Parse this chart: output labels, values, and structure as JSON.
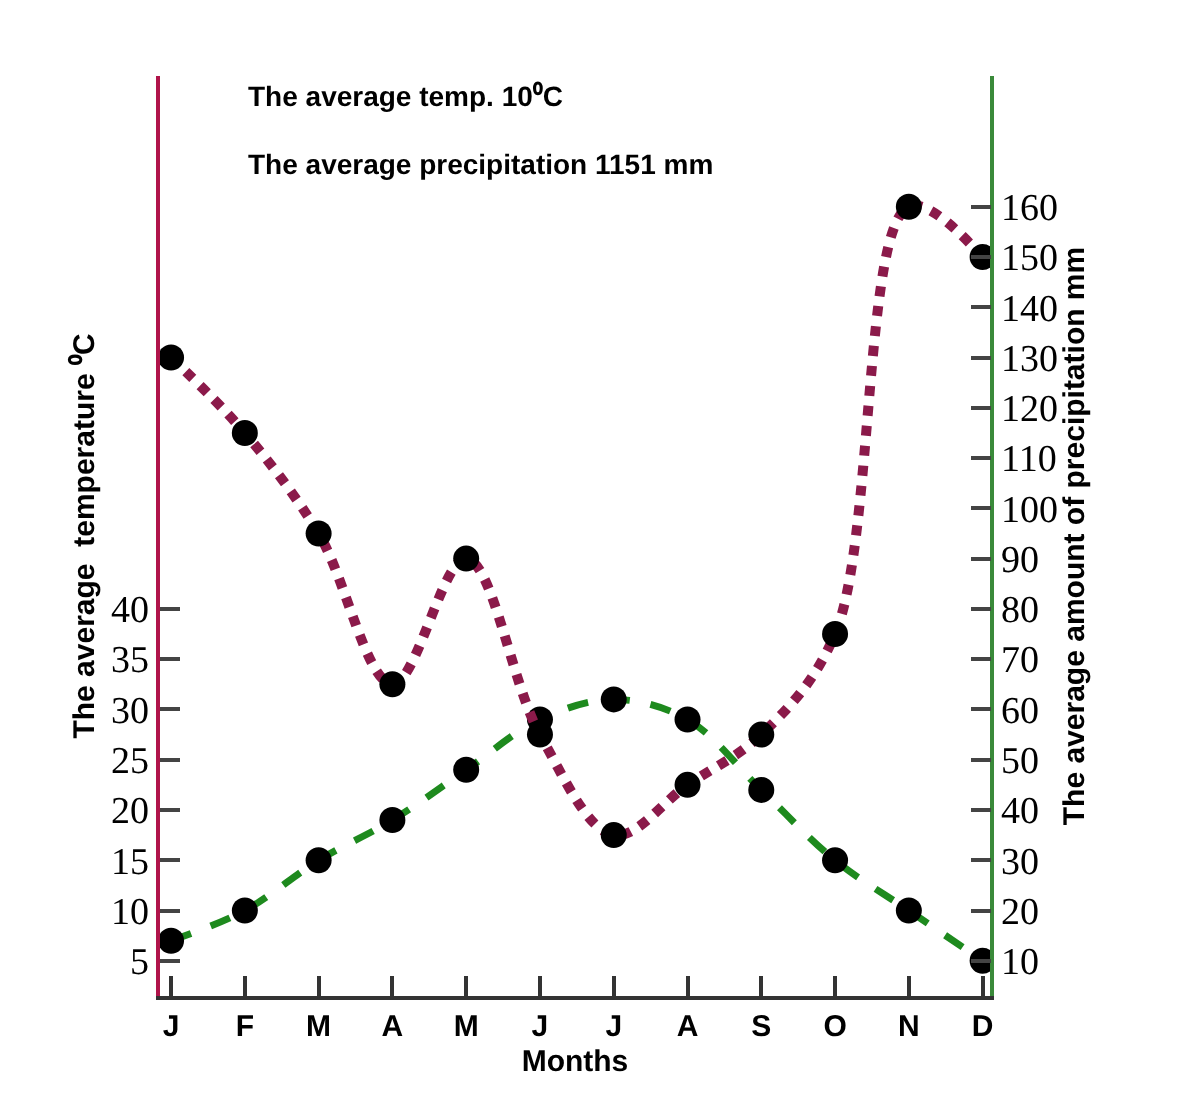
{
  "chart_data": {
    "type": "line",
    "xlabel": "Months",
    "ylabel": "The average  temperature ⁰C",
    "y2label": "The average amount of precipitation mm",
    "annotations": [
      "The average temp. 10⁰C",
      "The average precipitation 1151 mm"
    ],
    "categories": [
      "J",
      "F",
      "M",
      "A",
      "M",
      "J",
      "J",
      "A",
      "S",
      "O",
      "N",
      "D"
    ],
    "series": [
      {
        "color": "#1e8a1e",
        "line_style": "dashed",
        "values": [
          7,
          10,
          15,
          19,
          24,
          29,
          31,
          29,
          22,
          15,
          10,
          5
        ]
      },
      {
        "color": "#8b1a4a",
        "line_style": "dotted",
        "axis": "y2",
        "values": [
          130,
          115,
          95,
          65,
          90,
          55,
          35,
          45,
          55,
          75,
          160,
          150
        ]
      }
    ],
    "ylim": [
      1.5,
      93
    ],
    "yticks": [
      5,
      10,
      15,
      20,
      25,
      30,
      35,
      40
    ],
    "y2lim": [
      3,
      186
    ],
    "y2ticks": [
      10,
      20,
      30,
      40,
      50,
      60,
      70,
      80,
      90,
      100,
      110,
      120,
      130,
      140,
      150,
      160
    ],
    "marker": "circle",
    "grid": false
  }
}
